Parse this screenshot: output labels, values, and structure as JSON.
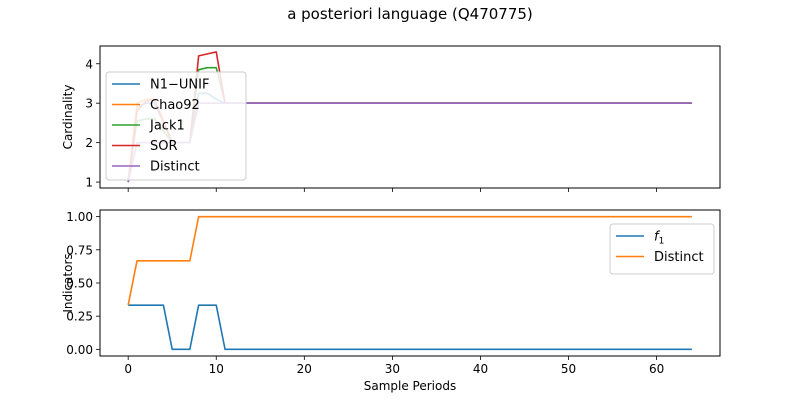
{
  "figure": {
    "title": "a posteriori language (Q470775)"
  },
  "colors": {
    "blue": "#1f77b4",
    "orange": "#ff7f0e",
    "green": "#2ca02c",
    "red": "#d62728",
    "purple": "#9467bd"
  },
  "chart_data": [
    {
      "type": "line",
      "title": "",
      "xlabel": "",
      "ylabel": "Cardinality",
      "xlim": [
        -3.2,
        67.2
      ],
      "ylim": [
        0.85,
        4.45
      ],
      "xticks": [
        0,
        10,
        20,
        30,
        40,
        50,
        60
      ],
      "xtick_labels_visible": false,
      "yticks": [
        1,
        2,
        3,
        4
      ],
      "legend": "center-left",
      "grid": false,
      "series": [
        {
          "name": "N1−UNIF",
          "color": "#1f77b4",
          "x": [
            0,
            1,
            2,
            3,
            4,
            5,
            6,
            7,
            8,
            9,
            10,
            11,
            64
          ],
          "y": [
            1,
            2.9,
            3.0,
            3.0,
            2.5,
            2.0,
            2.0,
            2.0,
            3.25,
            3.25,
            3.1,
            3.0,
            3.0
          ]
        },
        {
          "name": "Chao92",
          "color": "#ff7f0e",
          "x": [
            0,
            1,
            2,
            3,
            4,
            5,
            6,
            7,
            8,
            9,
            10,
            11,
            64
          ],
          "y": [
            1,
            3.0,
            3.1,
            3.1,
            2.5,
            2.0,
            2.0,
            2.0,
            3.0,
            3.0,
            3.0,
            3.0,
            3.0
          ]
        },
        {
          "name": "Jack1",
          "color": "#2ca02c",
          "x": [
            0,
            1,
            2,
            3,
            4,
            5,
            6,
            7,
            8,
            9,
            10,
            11,
            64
          ],
          "y": [
            1,
            2.55,
            2.6,
            2.6,
            2.3,
            2.0,
            2.0,
            2.0,
            3.85,
            3.9,
            3.9,
            3.0,
            3.0
          ]
        },
        {
          "name": "SOR",
          "color": "#d62728",
          "x": [
            0,
            1,
            2,
            3,
            4,
            5,
            6,
            7,
            8,
            9,
            10,
            11,
            64
          ],
          "y": [
            1,
            2.8,
            3.05,
            3.1,
            2.55,
            2.0,
            2.0,
            2.0,
            4.2,
            4.25,
            4.3,
            3.0,
            3.0
          ]
        },
        {
          "name": "Distinct",
          "color": "#9467bd",
          "x": [
            0,
            1,
            2,
            3,
            4,
            5,
            6,
            7,
            8,
            9,
            10,
            11,
            64
          ],
          "y": [
            1,
            2.0,
            2.0,
            2.0,
            2.0,
            2.0,
            2.0,
            2.0,
            3.0,
            3.0,
            3.0,
            3.0,
            3.0
          ]
        }
      ]
    },
    {
      "type": "line",
      "title": "",
      "xlabel": "Sample Periods",
      "ylabel": "Indicators",
      "xlim": [
        -3.2,
        67.2
      ],
      "ylim": [
        -0.05,
        1.05
      ],
      "xticks": [
        0,
        10,
        20,
        30,
        40,
        50,
        60
      ],
      "xtick_labels_visible": true,
      "yticks": [
        0.0,
        0.25,
        0.5,
        0.75,
        1.0
      ],
      "ytick_labels": [
        "0.00",
        "0.25",
        "0.50",
        "0.75",
        "1.00"
      ],
      "legend": "top-right",
      "grid": false,
      "series": [
        {
          "name": "f1",
          "color": "#1f77b4",
          "x": [
            0,
            1,
            2,
            3,
            4,
            5,
            6,
            7,
            8,
            9,
            10,
            11,
            64
          ],
          "y": [
            0.333,
            0.333,
            0.333,
            0.333,
            0.333,
            0,
            0,
            0,
            0.333,
            0.333,
            0.333,
            0,
            0
          ]
        },
        {
          "name": "Distinct",
          "color": "#ff7f0e",
          "x": [
            0,
            1,
            2,
            3,
            4,
            5,
            6,
            7,
            8,
            9,
            10,
            11,
            64
          ],
          "y": [
            0.333,
            0.667,
            0.667,
            0.667,
            0.667,
            0.667,
            0.667,
            0.667,
            1,
            1,
            1,
            1,
            1
          ]
        }
      ]
    }
  ]
}
